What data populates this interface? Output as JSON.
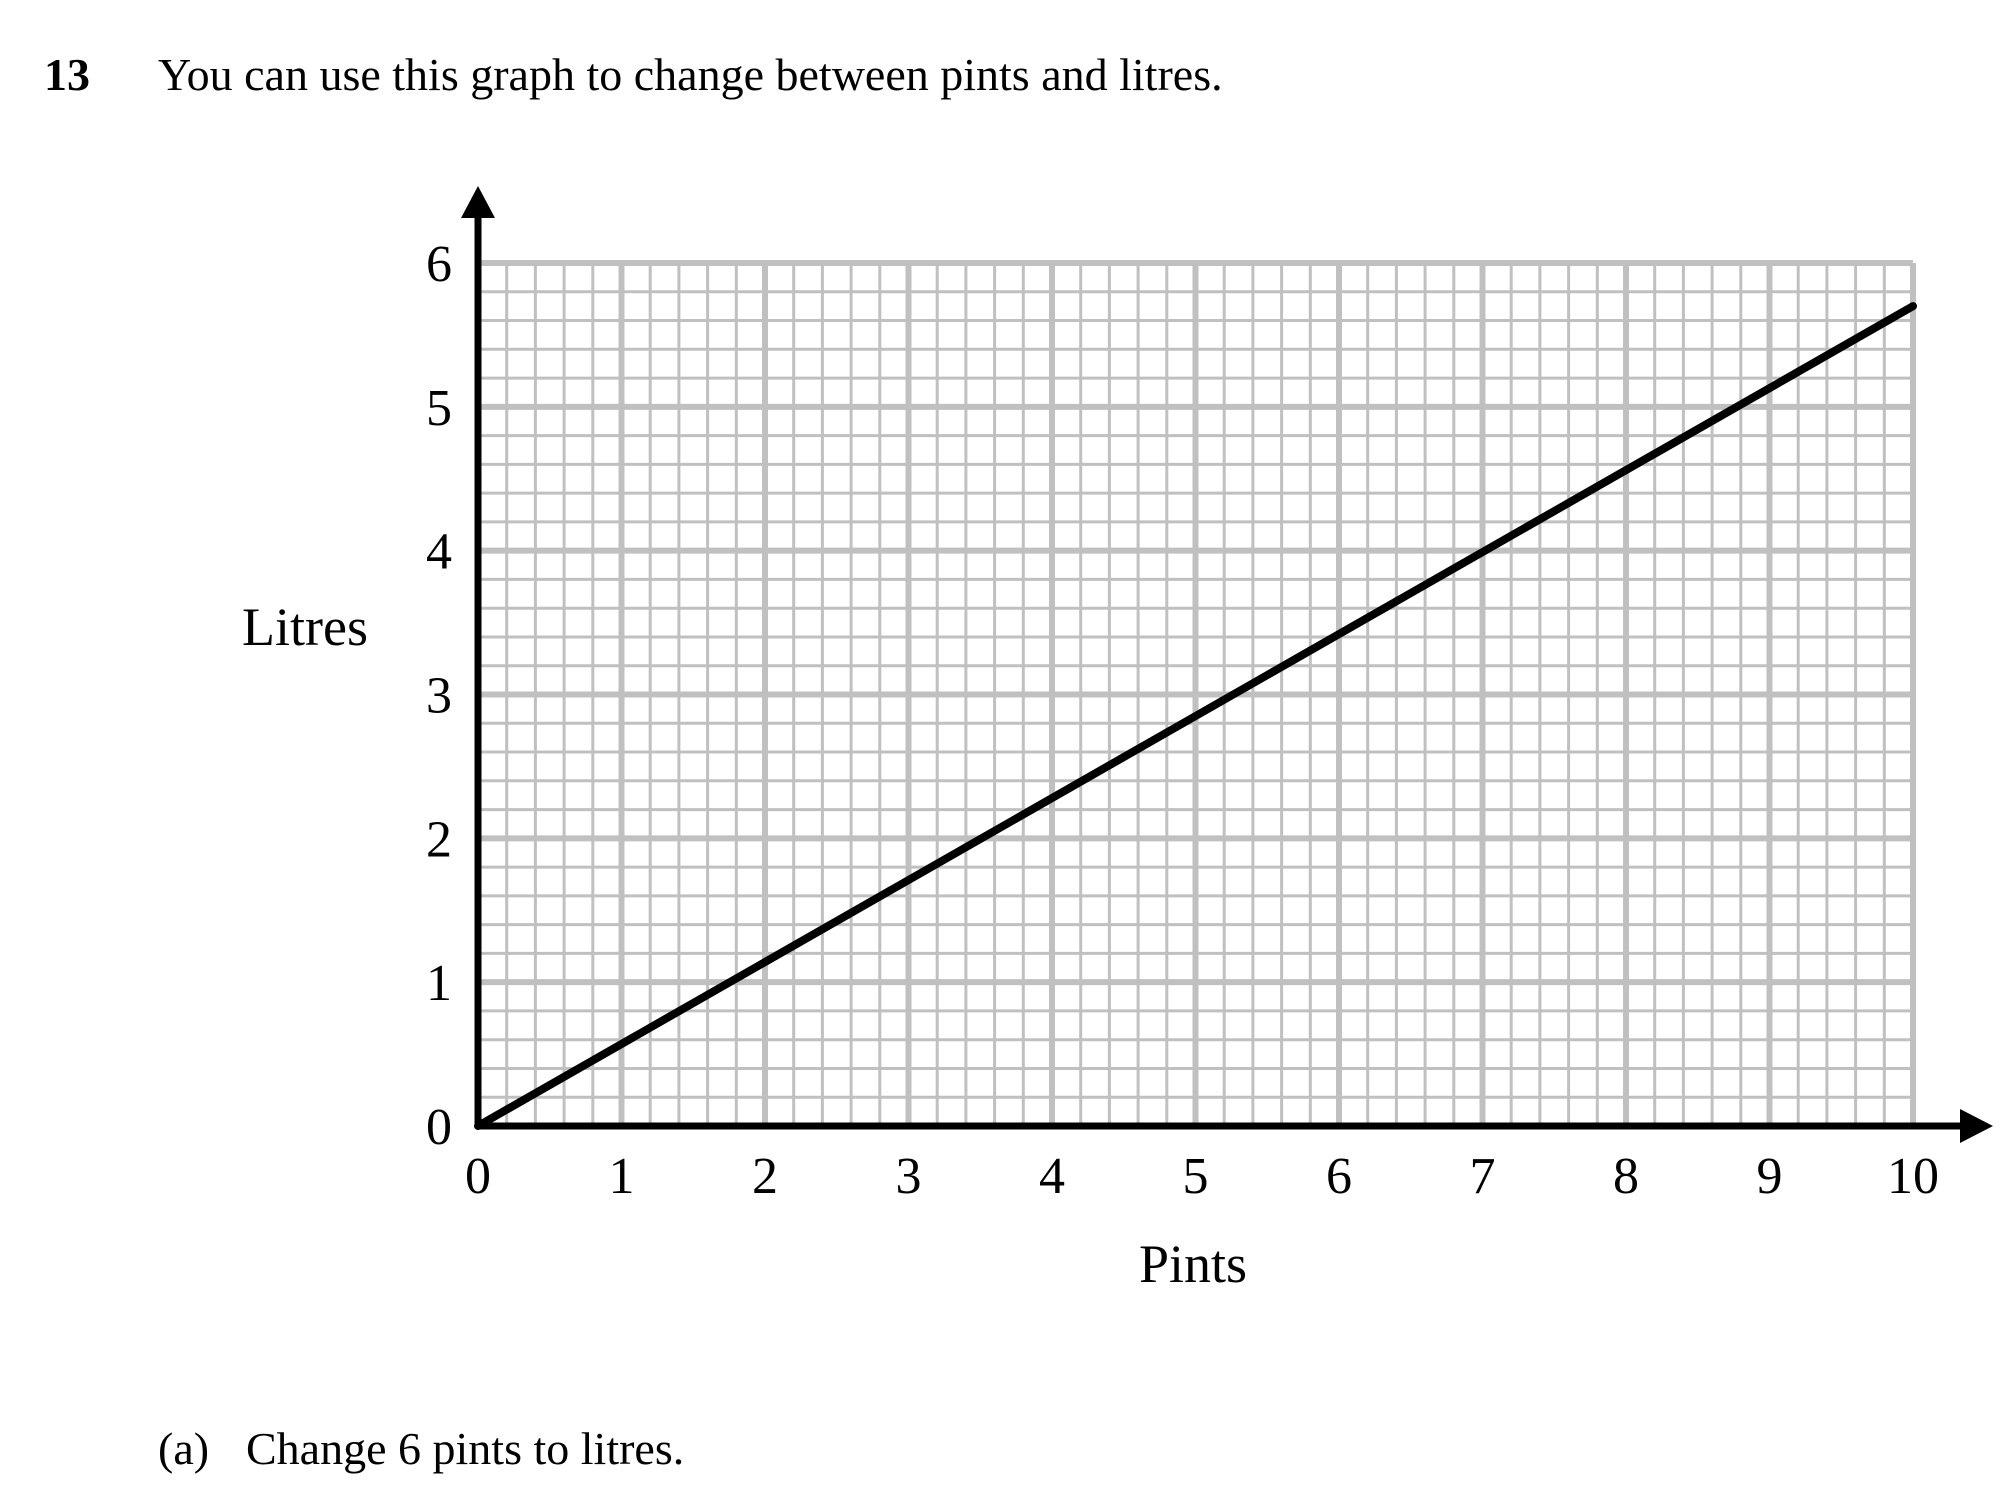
{
  "question": {
    "number": "13",
    "text": "You can use this graph to change between pints and litres."
  },
  "part_a": {
    "label": "(a)",
    "text": "Change 6 pints to litres."
  },
  "colors": {
    "grid": "#c0c0c0",
    "axis": "#000000",
    "line": "#000000"
  },
  "chart_data": {
    "type": "line",
    "xlabel": "Pints",
    "ylabel": "Litres",
    "xlim": [
      0,
      10
    ],
    "ylim": [
      0,
      6
    ],
    "xticks": [
      "0",
      "1",
      "2",
      "3",
      "4",
      "5",
      "6",
      "7",
      "8",
      "9",
      "10"
    ],
    "yticks": [
      "0",
      "1",
      "2",
      "3",
      "4",
      "5",
      "6"
    ],
    "grid": true,
    "minor_divisions": 5,
    "series": [
      {
        "x": [
          0,
          10
        ],
        "y": [
          0,
          5.7
        ]
      }
    ]
  }
}
